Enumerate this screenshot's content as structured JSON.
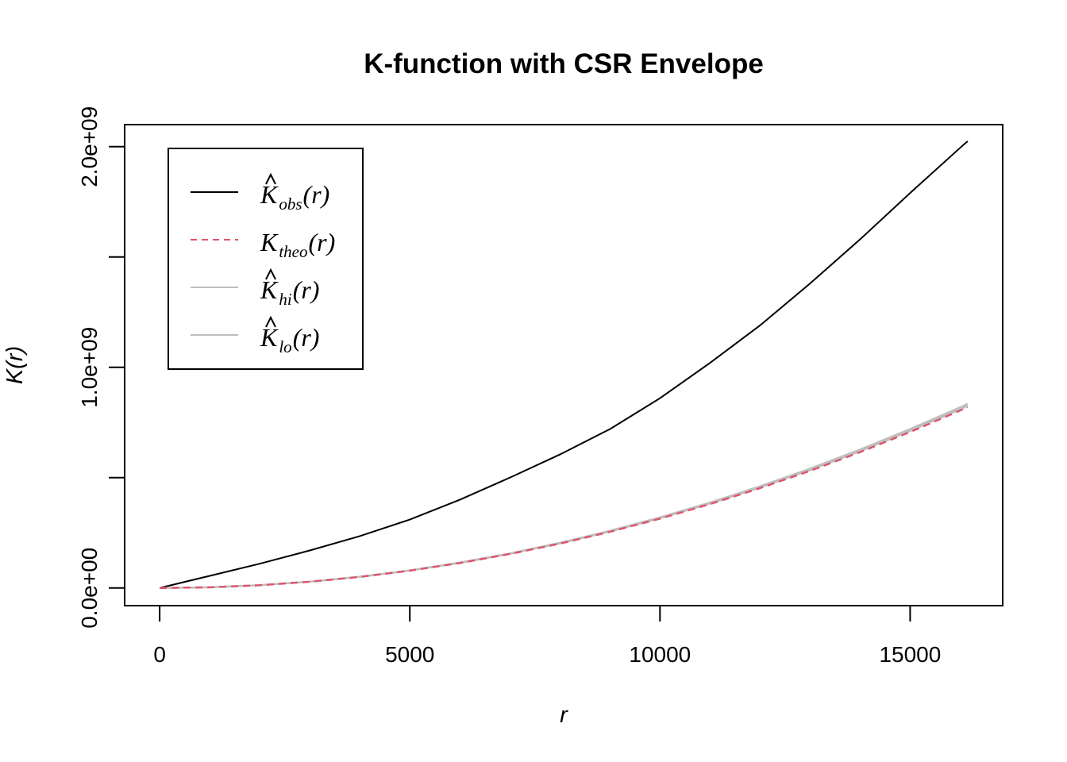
{
  "chart_data": {
    "type": "line",
    "title": "K-function with CSR Envelope",
    "xlabel": "r",
    "ylabel": "K(r)",
    "xlim": [
      -700,
      16850
    ],
    "ylim": [
      -80000000,
      2100000000
    ],
    "x_ticks": [
      0,
      5000,
      10000,
      15000
    ],
    "x_tick_labels": [
      "0",
      "5000",
      "10000",
      "15000"
    ],
    "y_ticks": [
      0,
      500000000,
      1000000000,
      1500000000,
      2000000000
    ],
    "y_tick_labels": [
      "0.0e+00",
      "",
      "1.0e+09",
      "",
      "2.0e+09"
    ],
    "grid": false,
    "legend_position": "top-left",
    "legend": [
      {
        "symbol": "K",
        "hat": true,
        "sub": "obs",
        "arg": "(r)",
        "color": "#000000",
        "dash": "solid"
      },
      {
        "symbol": "K",
        "hat": false,
        "sub": "theo",
        "arg": "(r)",
        "color": "#DF536B",
        "dash": "dashed"
      },
      {
        "symbol": "K",
        "hat": true,
        "sub": "hi",
        "arg": "(r)",
        "color": "#BEBEBE",
        "dash": "solid"
      },
      {
        "symbol": "K",
        "hat": true,
        "sub": "lo",
        "arg": "(r)",
        "color": "#BEBEBE",
        "dash": "solid"
      }
    ],
    "x": [
      0,
      1000,
      2000,
      3000,
      4000,
      5000,
      6000,
      7000,
      8000,
      9000,
      10000,
      11000,
      12000,
      13000,
      14000,
      15000,
      16000,
      16150
    ],
    "series": [
      {
        "key": "obs",
        "color": "#000000",
        "dash": "solid",
        "values": [
          0,
          55000000,
          110000000,
          170000000,
          235000000,
          310000000,
          400000000,
          500000000,
          605000000,
          720000000,
          860000000,
          1020000000,
          1190000000,
          1380000000,
          1580000000,
          1790000000,
          1995000000,
          2025000000
        ]
      },
      {
        "key": "hi",
        "color": "#BEBEBE",
        "dash": "solid",
        "values": [
          0,
          3200000,
          12800000,
          28800000,
          51200000,
          80000000,
          115200000,
          156800000,
          204800000,
          259200000,
          320000000,
          387200000,
          460800000,
          540800000,
          627200000,
          720000000,
          819200000,
          834600000
        ]
      },
      {
        "key": "lo",
        "color": "#BEBEBE",
        "dash": "solid",
        "values": [
          0,
          3100000,
          12500000,
          28300000,
          50400000,
          78800000,
          113600000,
          154800000,
          202200000,
          256100000,
          316300000,
          382700000,
          455500000,
          534600000,
          620100000,
          711900000,
          810000000,
          825300000
        ]
      },
      {
        "key": "theo",
        "color": "#DF536B",
        "dash": "dashed",
        "values": [
          0,
          3140000,
          12570000,
          28270000,
          50270000,
          78540000,
          113100000,
          153940000,
          201060000,
          254470000,
          314160000,
          380130000,
          452390000,
          530930000,
          615750000,
          706860000,
          804250000,
          819400000
        ]
      }
    ]
  }
}
